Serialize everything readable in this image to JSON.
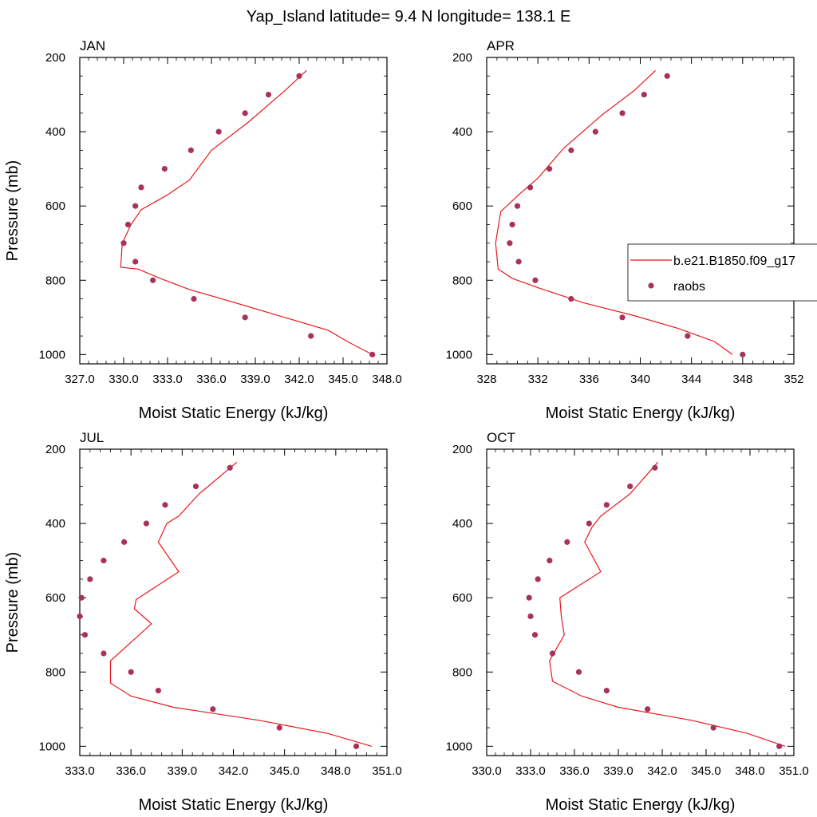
{
  "title": "Yap_Island  latitude= 9.4 N longitude= 138.1 E",
  "colors": {
    "model": "#e8191e",
    "raobs": "#a8325a"
  },
  "legend": {
    "model_label": "b.e21.B1850.f09_g17",
    "raobs_label": "raobs",
    "placement": "right-middle of APR panel"
  },
  "chart_data": [
    {
      "type": "line",
      "panel_label": "JAN",
      "xlabel": "Moist Static Energy (kJ/kg)",
      "ylabel": "Pressure (mb)",
      "xlim": [
        327,
        348
      ],
      "ylim": [
        1025,
        200
      ],
      "xticks": [
        327,
        330,
        333,
        336,
        339,
        342,
        345,
        348
      ],
      "xtick_labels": [
        "327.0",
        "330.0",
        "333.0",
        "336.0",
        "339.0",
        "342.0",
        "345.0",
        "348.0"
      ],
      "yticks": [
        200,
        400,
        600,
        800,
        1000
      ],
      "yticks_labels": [
        "200",
        "400",
        "600",
        "800",
        "1000"
      ],
      "model": {
        "name": "b.e21.B1850.f09_g17",
        "x": [
          347.0,
          345.3,
          344.0,
          341.0,
          338.0,
          334.5,
          332.5,
          331.0,
          329.8,
          329.9,
          330.5,
          331.2,
          333.0,
          334.5,
          336.0,
          338.5,
          341.0,
          342.5
        ],
        "y": [
          1000,
          965,
          935,
          900,
          865,
          825,
          795,
          770,
          765,
          700,
          650,
          610,
          570,
          530,
          450,
          375,
          290,
          235
        ]
      },
      "raobs": {
        "name": "raobs",
        "x": [
          347.0,
          342.8,
          338.3,
          334.8,
          332.0,
          330.8,
          330.0,
          330.3,
          330.8,
          331.2,
          332.8,
          334.6,
          336.5,
          338.3,
          339.9,
          342.0
        ],
        "y": [
          1000,
          950,
          900,
          850,
          800,
          750,
          700,
          650,
          600,
          550,
          500,
          450,
          400,
          350,
          300,
          250
        ]
      }
    },
    {
      "type": "line",
      "panel_label": "APR",
      "xlabel": "Moist Static Energy (kJ/kg)",
      "ylabel": "",
      "xlim": [
        328,
        352
      ],
      "ylim": [
        1025,
        200
      ],
      "xticks": [
        328,
        332,
        336,
        340,
        344,
        348,
        352
      ],
      "xtick_labels": [
        "328",
        "332",
        "336",
        "340",
        "344",
        "348",
        "352"
      ],
      "yticks": [
        200,
        400,
        600,
        800,
        1000
      ],
      "yticks_labels": [
        "200",
        "400",
        "600",
        "800",
        "1000"
      ],
      "model": {
        "name": "b.e21.B1850.f09_g17",
        "x": [
          347.2,
          345.8,
          343.0,
          339.5,
          335.5,
          332.0,
          330.0,
          328.9,
          328.7,
          329.1,
          330.5,
          332.0,
          334.0,
          337.0,
          339.5,
          341.2
        ],
        "y": [
          1000,
          965,
          930,
          895,
          860,
          820,
          795,
          770,
          700,
          615,
          570,
          525,
          445,
          355,
          290,
          235
        ]
      },
      "raobs": {
        "name": "raobs",
        "x": [
          348.0,
          343.7,
          338.6,
          334.6,
          331.8,
          330.5,
          329.8,
          330.0,
          330.4,
          331.4,
          332.9,
          334.6,
          336.5,
          338.6,
          340.3,
          342.1
        ],
        "y": [
          1000,
          950,
          900,
          850,
          800,
          750,
          700,
          650,
          600,
          550,
          500,
          450,
          400,
          350,
          300,
          250
        ]
      }
    },
    {
      "type": "line",
      "panel_label": "JUL",
      "xlabel": "Moist Static Energy (kJ/kg)",
      "ylabel": "Pressure (mb)",
      "xlim": [
        333,
        351
      ],
      "ylim": [
        1025,
        200
      ],
      "xticks": [
        333,
        336,
        339,
        342,
        345,
        348,
        351
      ],
      "xtick_labels": [
        "333.0",
        "336.0",
        "339.0",
        "342.0",
        "345.0",
        "348.0",
        "351.0"
      ],
      "yticks": [
        200,
        400,
        600,
        800,
        1000
      ],
      "yticks_labels": [
        "200",
        "400",
        "600",
        "800",
        "1000"
      ],
      "model": {
        "name": "b.e21.B1850.f09_g17",
        "x": [
          350.1,
          349.0,
          347.5,
          343.5,
          338.5,
          336.0,
          334.8,
          334.8,
          337.2,
          336.2,
          336.3,
          338.8,
          337.6,
          338.1,
          338.8,
          340.0,
          342.2
        ],
        "y": [
          1000,
          985,
          965,
          930,
          895,
          865,
          830,
          770,
          670,
          630,
          605,
          530,
          450,
          400,
          380,
          320,
          235
        ]
      },
      "raobs": {
        "name": "raobs",
        "x": [
          349.2,
          344.7,
          340.8,
          337.6,
          336.0,
          334.4,
          333.3,
          333.0,
          333.1,
          333.6,
          334.4,
          335.6,
          336.9,
          338.0,
          339.8,
          341.8
        ],
        "y": [
          1000,
          950,
          900,
          850,
          800,
          750,
          700,
          650,
          600,
          550,
          500,
          450,
          400,
          350,
          300,
          250
        ]
      }
    },
    {
      "type": "line",
      "panel_label": "OCT",
      "xlabel": "Moist Static Energy (kJ/kg)",
      "ylabel": "",
      "xlim": [
        330,
        351
      ],
      "ylim": [
        1025,
        200
      ],
      "xticks": [
        330,
        333,
        336,
        339,
        342,
        345,
        348,
        351
      ],
      "xtick_labels": [
        "330.0",
        "333.0",
        "336.0",
        "339.0",
        "342.0",
        "345.0",
        "348.0",
        "351.0"
      ],
      "yticks": [
        200,
        400,
        600,
        800,
        1000
      ],
      "yticks_labels": [
        "200",
        "400",
        "600",
        "800",
        "1000"
      ],
      "model": {
        "name": "b.e21.B1850.f09_g17",
        "x": [
          350.4,
          349.3,
          347.8,
          344.0,
          339.0,
          336.5,
          334.5,
          334.3,
          335.3,
          335.1,
          335.0,
          337.8,
          336.7,
          337.2,
          337.8,
          339.8,
          341.7
        ],
        "y": [
          1000,
          985,
          965,
          930,
          895,
          865,
          825,
          770,
          700,
          650,
          600,
          530,
          450,
          410,
          380,
          320,
          235
        ]
      },
      "raobs": {
        "name": "raobs",
        "x": [
          350.0,
          345.5,
          341.0,
          338.2,
          336.3,
          334.5,
          333.3,
          333.0,
          332.9,
          333.5,
          334.3,
          335.5,
          337.0,
          338.2,
          339.8,
          341.5
        ],
        "y": [
          1000,
          950,
          900,
          850,
          800,
          750,
          700,
          650,
          600,
          550,
          500,
          450,
          400,
          350,
          300,
          250
        ]
      }
    }
  ]
}
